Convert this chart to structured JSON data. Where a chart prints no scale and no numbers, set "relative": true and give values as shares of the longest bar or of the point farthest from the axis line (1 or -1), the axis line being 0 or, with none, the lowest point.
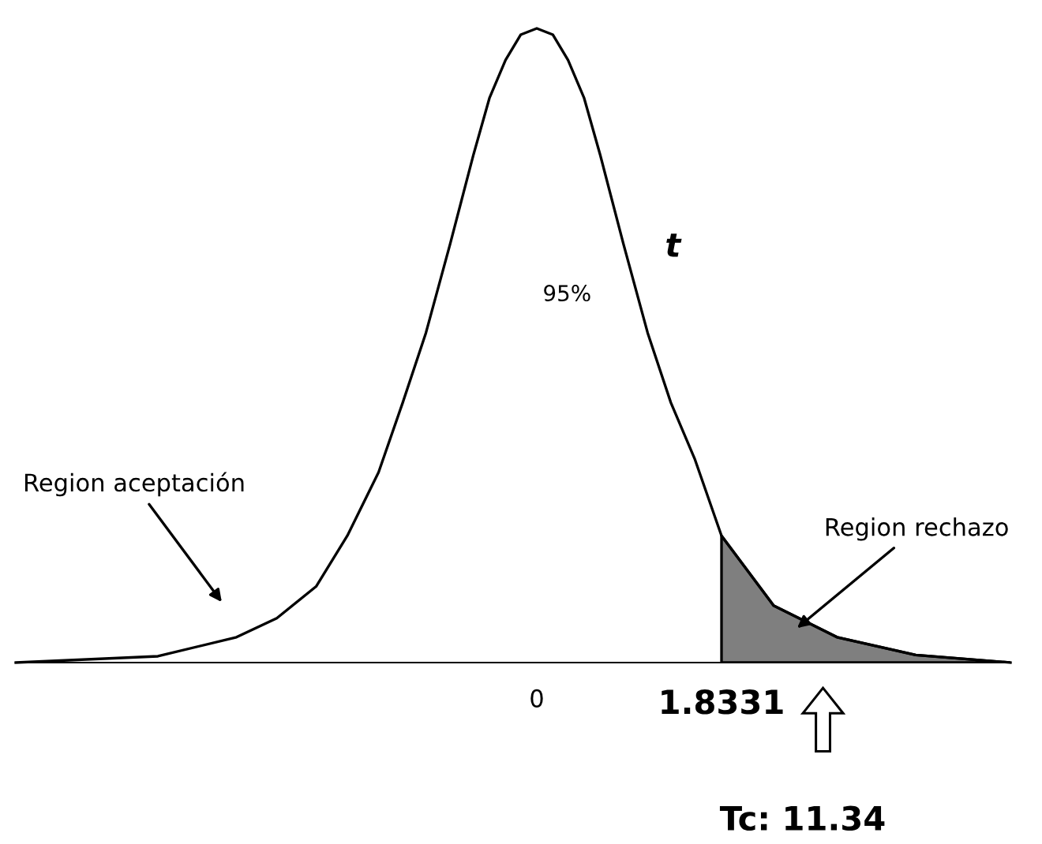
{
  "chart_data": {
    "type": "line",
    "relative": true,
    "x": [
      -5.17,
      -3.76,
      -2.98,
      -2.58,
      -2.19,
      -1.88,
      -1.57,
      -1.33,
      -1.1,
      -0.86,
      -0.63,
      -0.47,
      -0.31,
      -0.16,
      0,
      0.16,
      0.31,
      0.47,
      0.63,
      0.86,
      1.1,
      1.33,
      1.57,
      1.8331,
      2.35,
      2.98,
      3.76,
      4.7
    ],
    "series": [
      {
        "color": "#000000",
        "values": [
          0,
          0.01,
          0.04,
          0.07,
          0.12,
          0.2,
          0.3,
          0.41,
          0.52,
          0.66,
          0.8,
          0.89,
          0.95,
          0.99,
          1,
          0.99,
          0.95,
          0.89,
          0.8,
          0.66,
          0.52,
          0.41,
          0.32,
          0.2,
          0.09,
          0.04,
          0.012,
          0
        ]
      },
      {
        "type": "area",
        "color": "#7f7f7f",
        "x": [
          1.8331,
          2.35,
          2.98,
          3.76,
          4.7
        ],
        "values": [
          0.2,
          0.09,
          0.04,
          0.012,
          0
        ]
      }
    ],
    "xlim": [
      -5.17,
      4.7
    ],
    "xticks": [
      0,
      1.8331
    ],
    "annotations": [
      "95%",
      "t",
      "Region aceptación",
      "Region rechazo",
      "Tc: 11.34"
    ],
    "grid": false,
    "legend": false,
    "marker": "none",
    "line_style": "solid",
    "tick_labels": "x"
  }
}
